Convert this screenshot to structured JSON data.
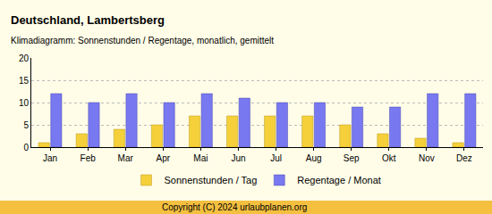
{
  "chart_data": {
    "type": "bar",
    "title": "Deutschland, Lambertsberg",
    "subtitle": "Klimadiagramm: Sonnenstunden / Regentage, monatlich, gemittelt",
    "categories": [
      "Jan",
      "Feb",
      "Mar",
      "Apr",
      "Mai",
      "Jun",
      "Jul",
      "Aug",
      "Sep",
      "Okt",
      "Nov",
      "Dez"
    ],
    "series": [
      {
        "name": "Sonnenstunden / Tag",
        "color": "#f5d03a",
        "values": [
          1,
          3,
          4,
          5,
          7,
          7,
          7,
          7,
          5,
          3,
          2,
          1
        ]
      },
      {
        "name": "Regentage / Monat",
        "color": "#7878f0",
        "values": [
          12,
          10,
          12,
          10,
          12,
          11,
          10,
          10,
          9,
          9,
          12,
          12
        ]
      }
    ],
    "ylim": [
      0,
      20
    ],
    "yticks": [
      0,
      5,
      10,
      15,
      20
    ],
    "grid": true,
    "legend": "bottom",
    "annotations": [
      "Copyright (C) 2024 urlaubplanen.org"
    ]
  }
}
